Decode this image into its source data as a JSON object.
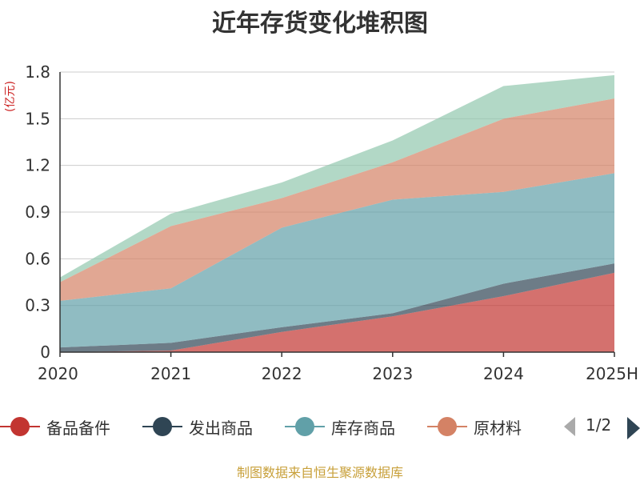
{
  "chart_data": {
    "type": "area",
    "stacked": true,
    "title": "近年存货变化堆积图",
    "ylabel": "(亿元)",
    "xlabel": "",
    "categories": [
      "2020",
      "2021",
      "2022",
      "2023",
      "2024",
      "2025H"
    ],
    "ylim": [
      0,
      1.8
    ],
    "yticks": [
      "0",
      "0.3",
      "0.6",
      "0.9",
      "1.2",
      "1.5",
      "1.8"
    ],
    "grid": true,
    "legend_position": "bottom",
    "series": [
      {
        "name": "备品备件",
        "color": "#c23531",
        "values": [
          0.0,
          0.01,
          0.13,
          0.23,
          0.36,
          0.51
        ]
      },
      {
        "name": "发出商品",
        "color": "#2f4554",
        "values": [
          0.03,
          0.05,
          0.03,
          0.02,
          0.08,
          0.06
        ]
      },
      {
        "name": "库存商品",
        "color": "#61a0a8",
        "values": [
          0.3,
          0.35,
          0.64,
          0.73,
          0.59,
          0.58
        ]
      },
      {
        "name": "原材料",
        "color": "#d48265",
        "values": [
          0.12,
          0.4,
          0.19,
          0.24,
          0.47,
          0.48
        ]
      },
      {
        "name": "",
        "color": "#91c7ae",
        "values": [
          0.03,
          0.08,
          0.1,
          0.14,
          0.21,
          0.15
        ]
      }
    ]
  },
  "legend": {
    "page_label": "1/2",
    "prev_icon": "triangle-left-icon",
    "next_icon": "triangle-right-icon"
  },
  "source": "制图数据来自恒生聚源数据库"
}
